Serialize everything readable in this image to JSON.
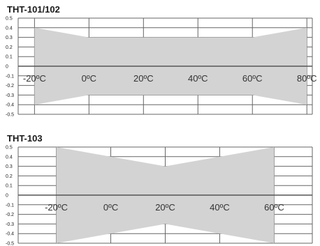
{
  "charts": [
    {
      "title": "THT-101/102"
    },
    {
      "title": "THT-103"
    }
  ],
  "colors": {
    "band": "#d3d3d3",
    "grid": "#666666",
    "axis": "#555555"
  },
  "chart_data": [
    {
      "type": "area",
      "title": "THT-101/102",
      "xlabel": "",
      "ylabel": "",
      "xlim": [
        -26,
        82
      ],
      "ylim": [
        -0.5,
        0.5
      ],
      "y_ticks": [
        0.5,
        0.4,
        0.3,
        0.2,
        0.1,
        0,
        -0.1,
        -0.2,
        -0.3,
        -0.4,
        -0.5
      ],
      "x_tick_labels": [
        "-20ºC",
        "0ºC",
        "20ºC",
        "40ºC",
        "60ºC",
        "80ºC"
      ],
      "x_tick_values": [
        -20,
        0,
        20,
        40,
        60,
        80
      ],
      "grid": true,
      "series": [
        {
          "x": [
            -20,
            0,
            60,
            80
          ],
          "values": [
            0.4,
            0.3,
            0.3,
            0.4
          ]
        },
        {
          "x": [
            -20,
            0,
            60,
            80
          ],
          "values": [
            -0.4,
            -0.3,
            -0.3,
            -0.4
          ]
        }
      ]
    },
    {
      "type": "area",
      "title": "THT-103",
      "xlabel": "",
      "ylabel": "",
      "xlim": [
        -34,
        74
      ],
      "ylim": [
        -0.5,
        0.5
      ],
      "y_ticks": [
        0.5,
        0.4,
        0.3,
        0.2,
        0.1,
        0,
        -0.1,
        -0.2,
        -0.3,
        -0.4,
        -0.5
      ],
      "x_tick_labels": [
        "-20ºC",
        "0ºC",
        "20ºC",
        "40ºC",
        "60ºC"
      ],
      "x_tick_values": [
        -20,
        0,
        20,
        40,
        60
      ],
      "grid": true,
      "series": [
        {
          "x": [
            -20,
            20,
            60
          ],
          "values": [
            0.5,
            0.3,
            0.5
          ]
        },
        {
          "x": [
            -20,
            20,
            60
          ],
          "values": [
            -0.5,
            -0.3,
            -0.5
          ]
        }
      ]
    }
  ]
}
